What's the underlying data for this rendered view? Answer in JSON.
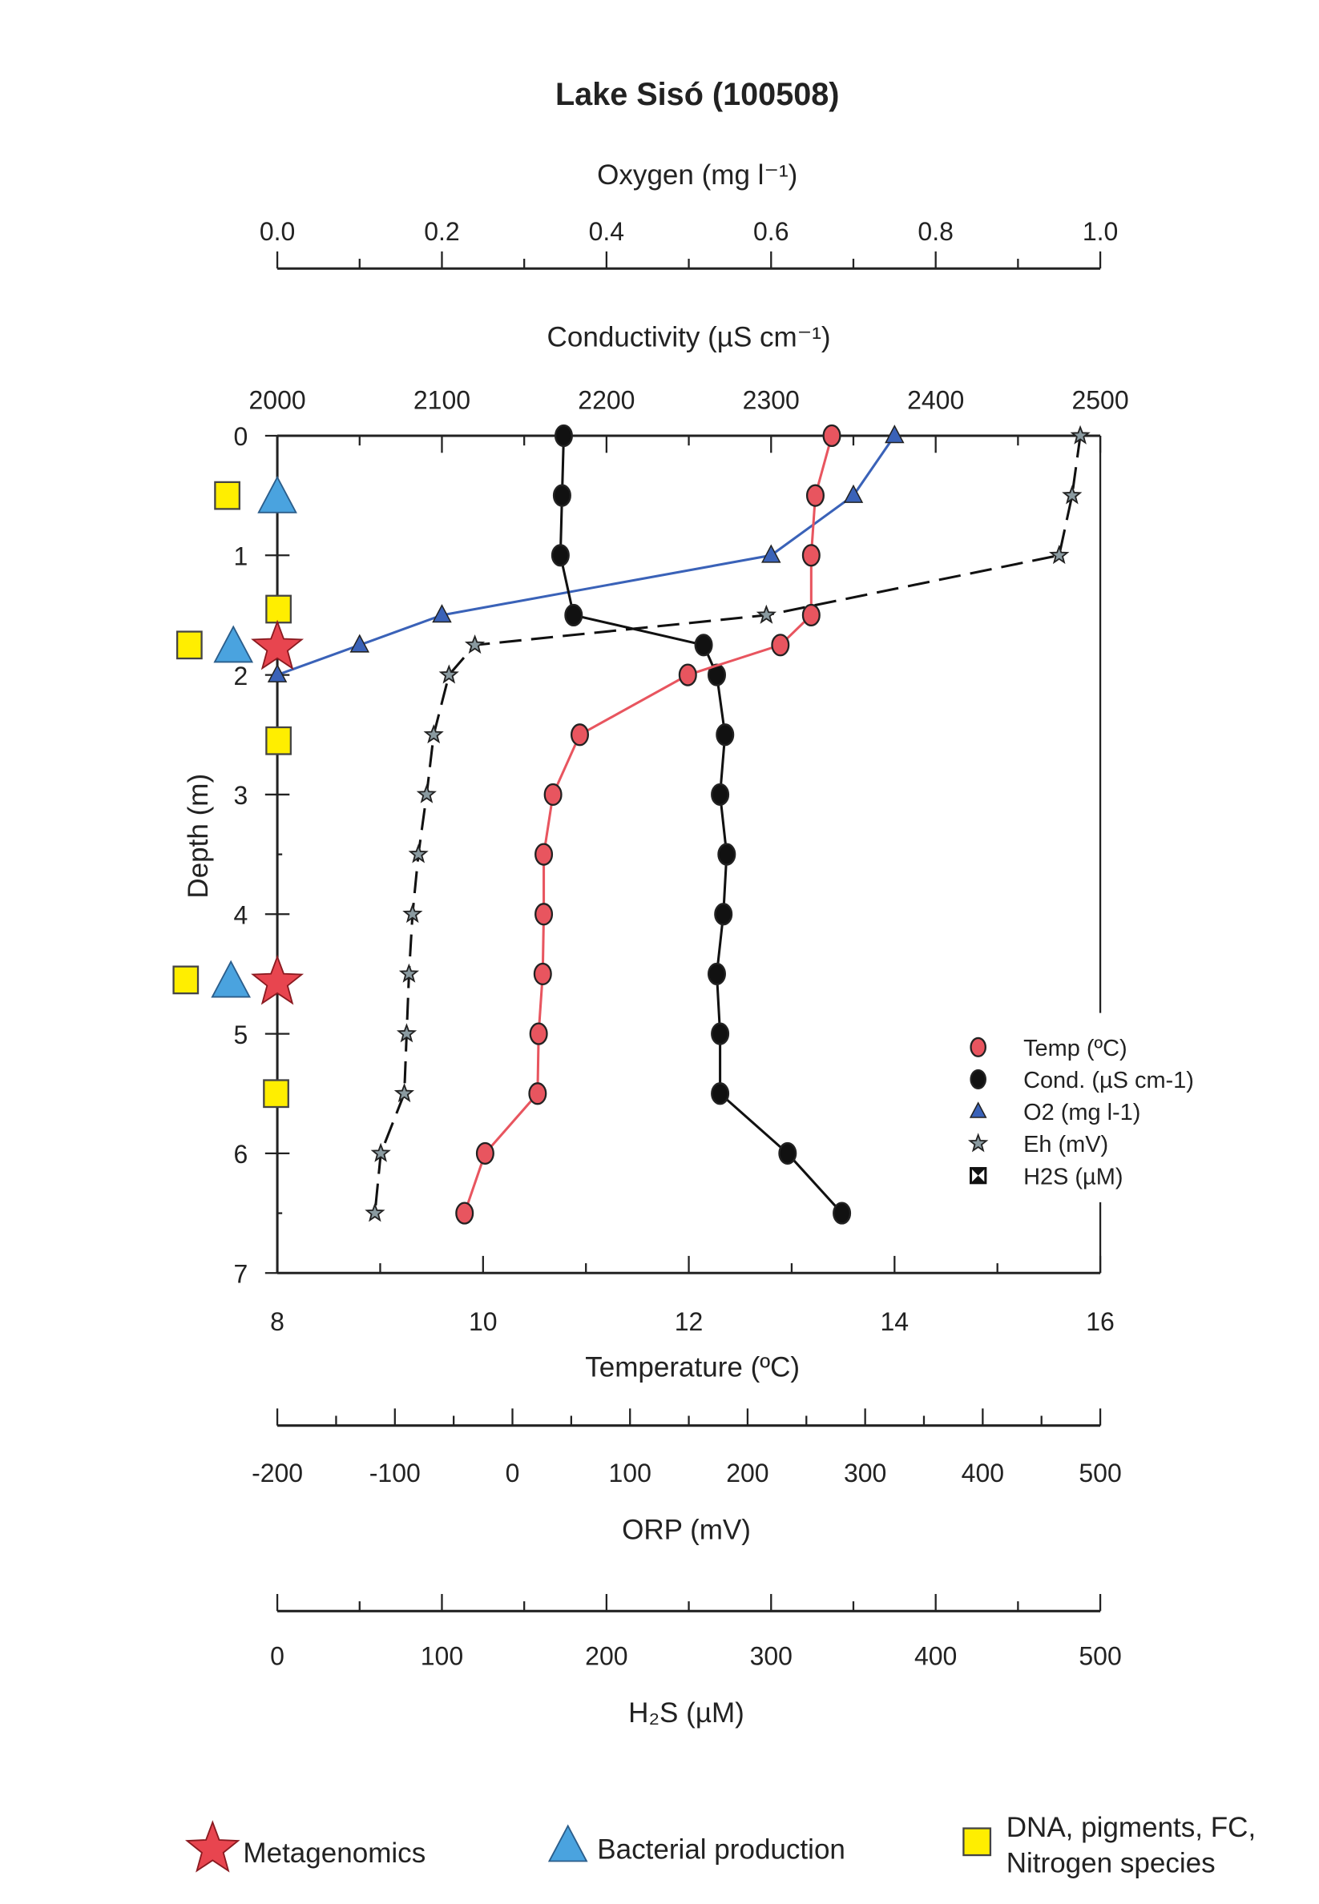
{
  "chart_data": {
    "type": "scatter",
    "title": "Lake Sisó (100508)",
    "ylabel": "Depth (m)",
    "ylim": [
      7,
      0
    ],
    "y_ticks": [
      0,
      1,
      2,
      3,
      4,
      5,
      6,
      7
    ],
    "axes": {
      "oxygen": {
        "label": "Oxygen (mg l⁻¹)",
        "range": [
          0,
          1.0
        ],
        "ticks": [
          "0.0",
          "0.2",
          "0.4",
          "0.6",
          "0.8",
          "1.0"
        ]
      },
      "conductivity": {
        "label": "Conductivity (µS cm⁻¹)",
        "range": [
          2000,
          2500
        ],
        "ticks": [
          "2000",
          "2100",
          "2200",
          "2300",
          "2400",
          "2500"
        ]
      },
      "temperature": {
        "label": "Temperature (ºC)",
        "range": [
          8,
          16
        ],
        "ticks": [
          "8",
          "10",
          "12",
          "14",
          "16"
        ]
      },
      "orp": {
        "label": "ORP (mV)",
        "range": [
          -200,
          500
        ],
        "ticks": [
          "-200",
          "-100",
          "0",
          "100",
          "200",
          "300",
          "400",
          "500"
        ]
      },
      "h2s": {
        "label": "H₂S (µM)",
        "range": [
          0,
          500
        ],
        "ticks": [
          "0",
          "100",
          "200",
          "300",
          "400",
          "500"
        ]
      }
    },
    "series": [
      {
        "name": "Temp (ºC)",
        "axis": "temperature",
        "color": "#e8555f",
        "marker": "circle",
        "depth": [
          0,
          0.5,
          1,
          1.5,
          1.75,
          2,
          2.5,
          3,
          3.5,
          4,
          4.5,
          5,
          5.5,
          6,
          6.5
        ],
        "values": [
          13.39,
          13.23,
          13.19,
          13.19,
          12.89,
          11.99,
          10.94,
          10.68,
          10.59,
          10.59,
          10.58,
          10.54,
          10.53,
          10.02,
          9.82
        ]
      },
      {
        "name": "Cond. (µS cm-1)",
        "axis": "conductivity",
        "color": "#111111",
        "marker": "circle",
        "depth": [
          0,
          0.5,
          1,
          1.5,
          1.75,
          2,
          2.5,
          3,
          3.5,
          4,
          4.5,
          5,
          5.5,
          6,
          6.5
        ],
        "values": [
          2174,
          2173,
          2172,
          2180,
          2259,
          2267,
          2272,
          2269,
          2273,
          2271,
          2267,
          2269,
          2269,
          2310,
          2343
        ]
      },
      {
        "name": "O2 (mg l-1)",
        "axis": "oxygen",
        "color": "#3a62b8",
        "marker": "triangle",
        "depth": [
          0,
          0.5,
          1,
          1.5,
          1.75,
          2
        ],
        "values": [
          0.75,
          0.7,
          0.6,
          0.2,
          0.1,
          0.0
        ]
      },
      {
        "name": "Eh (mV)",
        "axis": "orp",
        "color": "#111111",
        "marker": "star",
        "depth": [
          0,
          0.5,
          1,
          1.5,
          1.75,
          2,
          2.5,
          3,
          3.5,
          4,
          4.5,
          5,
          5.5,
          6,
          6.5
        ],
        "values": [
          483,
          476,
          465,
          216,
          -32,
          -54,
          -67,
          -73,
          -80,
          -85,
          -88,
          -90,
          -92,
          -112,
          -117
        ]
      },
      {
        "name": "H2S (µM)",
        "axis": "h2s",
        "color": "#111111",
        "marker": "hourglass-square",
        "depth": [],
        "values": []
      }
    ],
    "sampling": {
      "metagenomics": {
        "label": "Metagenomics",
        "color": "#e8454f",
        "depth": [
          1.75,
          4.55
        ]
      },
      "bacterial_production": {
        "label": "Bacterial production",
        "color": "#4aa3df",
        "depth": [
          0.5,
          1.75,
          4.55
        ]
      },
      "dna": {
        "label_line1": "DNA, pigments, FC,",
        "label_line2": "Nitrogen species",
        "color": "#ffee00",
        "depth": [
          0.5,
          1.45,
          1.75,
          2.55,
          4.55,
          5.5
        ]
      }
    },
    "legend_placement": "right"
  }
}
